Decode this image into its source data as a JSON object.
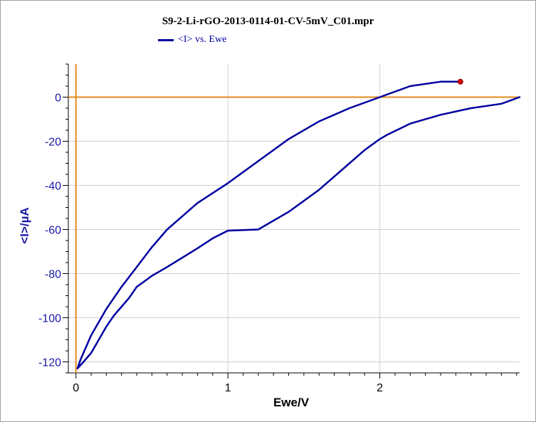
{
  "chart_data": {
    "type": "line",
    "title": "S9-2-Li-rGO-2013-0114-01-CV-5mV_C01.mpr",
    "xlabel": "Ewe/V",
    "ylabel": "<I>/µA",
    "xlim": [
      -0.05,
      2.92
    ],
    "ylim": [
      -125,
      15
    ],
    "x_ticks": [
      0,
      1,
      2
    ],
    "y_ticks": [
      0,
      -20,
      -40,
      -60,
      -80,
      -100,
      -120
    ],
    "grid": true,
    "legend_position": "top-left",
    "series": [
      {
        "name": "<I> vs. Ewe",
        "color": "#0000a0",
        "x": [
          2.92,
          2.8,
          2.6,
          2.4,
          2.2,
          2.05,
          2.0,
          1.9,
          1.8,
          1.6,
          1.4,
          1.2,
          1.0,
          0.9,
          0.8,
          0.6,
          0.5,
          0.4,
          0.35,
          0.3,
          0.25,
          0.2,
          0.15,
          0.1,
          0.05,
          0.01,
          0.03,
          0.1,
          0.2,
          0.3,
          0.4,
          0.5,
          0.6,
          0.8,
          1.0,
          1.2,
          1.4,
          1.6,
          1.8,
          2.0,
          2.2,
          2.4,
          2.53
        ],
        "y": [
          0,
          -3,
          -5,
          -8,
          -12,
          -17,
          -19,
          -24,
          -30,
          -42,
          -52,
          -60,
          -60.5,
          -64,
          -68.5,
          -77,
          -81,
          -86,
          -91,
          -95,
          -99,
          -104,
          -110,
          -116,
          -120,
          -123,
          -119,
          -108,
          -96,
          -86,
          -77,
          -68,
          -60,
          -48,
          -39,
          -29,
          -19,
          -11,
          -5,
          0,
          5,
          7,
          7
        ]
      }
    ],
    "marker": {
      "x": 2.53,
      "y": 7,
      "color": "#dd0000"
    },
    "reference_lines": {
      "color": "#e08a1e",
      "x": 0,
      "y": 0
    }
  }
}
